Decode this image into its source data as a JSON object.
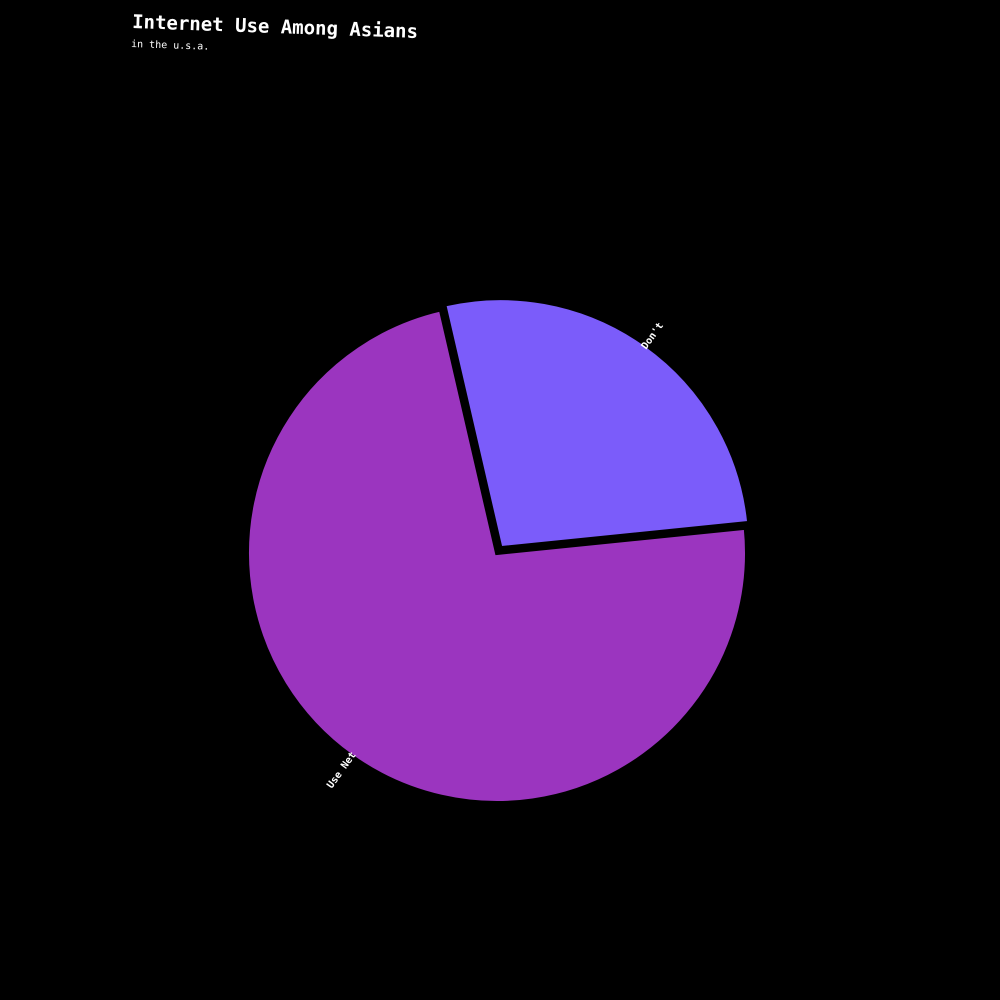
{
  "chart_data": {
    "type": "pie",
    "title": "Internet Use Among Asians",
    "subtitle": "in the u.s.a.",
    "slices": [
      {
        "label": "Don't",
        "value": 27,
        "color": "#7b5cfa",
        "exploded": true
      },
      {
        "label": "Use Net",
        "value": 73,
        "color": "#9b35bf",
        "exploded": false
      }
    ],
    "start_angle_deg": -13,
    "background_color": "#000000",
    "text_color": "#ffffff"
  }
}
